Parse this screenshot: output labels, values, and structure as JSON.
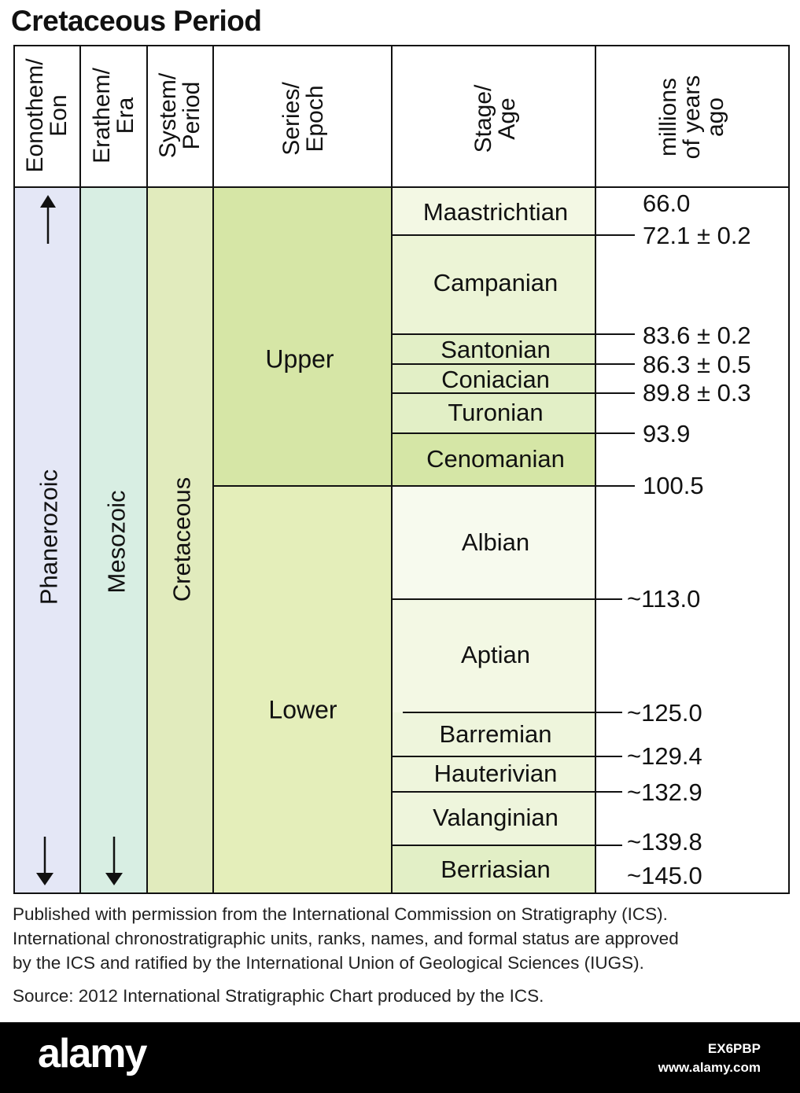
{
  "title": "Cretaceous Period",
  "headers": {
    "eon": [
      "Eonothem/",
      "Eon"
    ],
    "era": [
      "Erathem/",
      "Era"
    ],
    "period": [
      "System/",
      "Period"
    ],
    "epoch": [
      "Series/",
      "Epoch"
    ],
    "stage": [
      "Stage/",
      "Age"
    ],
    "age": [
      "millions",
      "of years",
      "ago"
    ]
  },
  "units": {
    "eon": "Phanerozoic",
    "era": "Mesozoic",
    "period": "Cretaceous",
    "epochs": [
      "Upper",
      "Lower"
    ]
  },
  "stages": [
    "Maastrichtian",
    "Campanian",
    "Santonian",
    "Coniacian",
    "Turonian",
    "Cenomanian",
    "Albian",
    "Aptian",
    "Barremian",
    "Hauterivian",
    "Valanginian",
    "Berriasian"
  ],
  "ages": [
    "66.0",
    "72.1 ± 0.2",
    "83.6 ± 0.2",
    "86.3 ± 0.5",
    "89.8 ± 0.3",
    "93.9",
    "100.5",
    "~113.0",
    "~125.0",
    "~129.4",
    "~132.9",
    "~139.8",
    "~145.0"
  ],
  "footnote": {
    "line1": "Published with permission from the International Commission on Stratigraphy (ICS).",
    "line2": "International chronostratigraphic units, ranks, names, and formal status are approved",
    "line3": "by the ICS and ratified by the International Union of Geological Sciences (IUGS).",
    "source": "Source: 2012 International Stratigraphic Chart produced by the ICS."
  },
  "watermark": {
    "brand": "alamy",
    "image_id": "EX6PBP",
    "url": "www.alamy.com"
  },
  "colors": {
    "eon": "#e4e7f6",
    "era": "#d8eee3",
    "period": "#e1ebbd",
    "upper_epoch": "#d6e6a6",
    "lower_epoch": "#e4eeba",
    "stage_pale": "#f3f8e4",
    "stage_light": "#ecf4d6",
    "stage_mid": "#e2efc6",
    "stage_dark": "#d5e6a6",
    "stage_lower_pale": "#f7faee",
    "stage_lower_light": "#f3f8e4",
    "stage_lower_mid": "#eef5dc",
    "stage_lower_dark": "#e2efc6"
  }
}
